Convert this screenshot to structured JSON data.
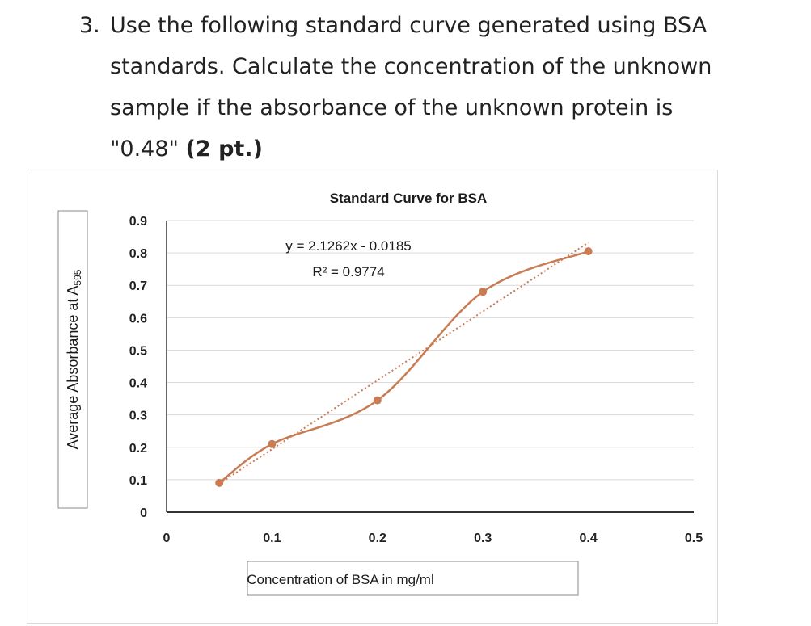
{
  "question": {
    "number": "3.",
    "lines": [
      "Use the following standard curve generated using BSA",
      "standards. Calculate the concentration of the unknown",
      "sample if the absorbance of the unknown protein is"
    ],
    "last_line_text": "\"0.48\" ",
    "points_label": "(2 pt.)"
  },
  "chart_data": {
    "type": "scatter",
    "title": "Standard Curve for BSA",
    "xlabel": "Concentration of BSA in mg/ml",
    "ylabel_main": "Average Absorbance at A",
    "ylabel_sub": "595",
    "x_ticks": [
      "0",
      "0.1",
      "0.2",
      "0.3",
      "0.4",
      "0.5"
    ],
    "y_ticks": [
      "0",
      "0.1",
      "0.2",
      "0.3",
      "0.4",
      "0.5",
      "0.6",
      "0.7",
      "0.8",
      "0.9"
    ],
    "xlim": [
      0,
      0.5
    ],
    "ylim": [
      0,
      0.9
    ],
    "grid": true,
    "series": [
      {
        "x": [
          0.05,
          0.1,
          0.2,
          0.3,
          0.4
        ],
        "y": [
          0.09,
          0.21,
          0.345,
          0.68,
          0.805
        ],
        "color": "#c97b54",
        "smooth": true
      }
    ],
    "trendline": {
      "type": "linear",
      "slope": 2.1262,
      "intercept": -0.0185,
      "color": "#c97b54",
      "style": "dotted"
    },
    "equation": "y = 2.1262x - 0.0185",
    "r2_label": "R² = 0.9774"
  }
}
